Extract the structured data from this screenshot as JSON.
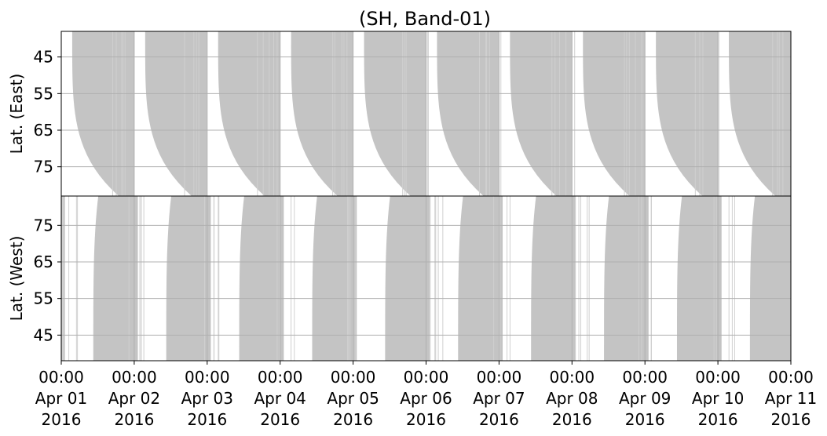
{
  "chart_data": {
    "type": "area",
    "title": "(SH, Band-01)",
    "grid": true,
    "colors": {
      "fill": "#c4c4c4",
      "grid": "#b0b0b0",
      "frame": "#000000"
    },
    "x": {
      "ticks": [
        {
          "day": 0,
          "time": "00:00",
          "date": "Apr 01",
          "year": "2016"
        },
        {
          "day": 1,
          "time": "00:00",
          "date": "Apr 02",
          "year": "2016"
        },
        {
          "day": 2,
          "time": "00:00",
          "date": "Apr 03",
          "year": "2016"
        },
        {
          "day": 3,
          "time": "00:00",
          "date": "Apr 04",
          "year": "2016"
        },
        {
          "day": 4,
          "time": "00:00",
          "date": "Apr 05",
          "year": "2016"
        },
        {
          "day": 5,
          "time": "00:00",
          "date": "Apr 06",
          "year": "2016"
        },
        {
          "day": 6,
          "time": "00:00",
          "date": "Apr 07",
          "year": "2016"
        },
        {
          "day": 7,
          "time": "00:00",
          "date": "Apr 08",
          "year": "2016"
        },
        {
          "day": 8,
          "time": "00:00",
          "date": "Apr 09",
          "year": "2016"
        },
        {
          "day": 9,
          "time": "00:00",
          "date": "Apr 10",
          "year": "2016"
        },
        {
          "day": 10,
          "time": "00:00",
          "date": "Apr 11",
          "year": "2016"
        }
      ],
      "range": [
        0,
        10
      ]
    },
    "panels": [
      {
        "name": "east",
        "ylabel": "Lat. (East)",
        "ylim": [
          38,
          83
        ],
        "y_inverted": true,
        "yticks": [
          45,
          55,
          65,
          75
        ],
        "bands": [
          {
            "start": 0.15,
            "end": 1.0
          },
          {
            "start": 1.15,
            "end": 2.0
          },
          {
            "start": 2.15,
            "end": 3.0
          },
          {
            "start": 3.15,
            "end": 4.0
          },
          {
            "start": 4.15,
            "end": 5.0
          },
          {
            "start": 5.15,
            "end": 6.0
          },
          {
            "start": 6.15,
            "end": 7.0
          },
          {
            "start": 7.15,
            "end": 8.0
          },
          {
            "start": 8.15,
            "end": 9.0
          },
          {
            "start": 9.15,
            "end": 10.0
          }
        ]
      },
      {
        "name": "west",
        "ylabel": "Lat. (West)",
        "ylim": [
          38,
          83
        ],
        "y_inverted": false,
        "yticks": [
          45,
          55,
          65,
          75
        ],
        "bands": [
          {
            "start": -0.6,
            "end": 0.05
          },
          {
            "start": 0.4,
            "end": 1.05
          },
          {
            "start": 1.4,
            "end": 2.05
          },
          {
            "start": 2.4,
            "end": 3.05
          },
          {
            "start": 3.4,
            "end": 4.05
          },
          {
            "start": 4.4,
            "end": 5.05
          },
          {
            "start": 5.4,
            "end": 6.05
          },
          {
            "start": 6.4,
            "end": 7.05
          },
          {
            "start": 7.4,
            "end": 8.05
          },
          {
            "start": 8.4,
            "end": 9.05
          },
          {
            "start": 9.4,
            "end": 10.05
          }
        ]
      }
    ]
  }
}
